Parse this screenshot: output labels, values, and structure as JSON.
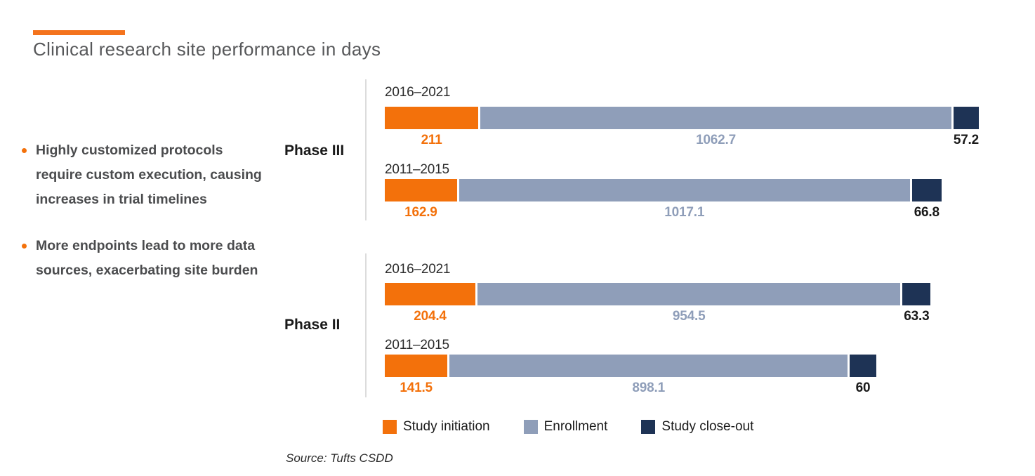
{
  "title": "Clinical research site performance in days",
  "accent_color": "#f4731d",
  "bullets": [
    "Highly customized protocols require custom execution, causing increases in trial timelines",
    "More endpoints lead to more data sources, exacerbating site burden"
  ],
  "chart_data": {
    "type": "bar",
    "orientation": "horizontal",
    "stacked": true,
    "unit": "days",
    "xmax": 1330.9,
    "legend_position": "bottom",
    "series_names": [
      "Study initiation",
      "Enrollment",
      "Study close-out"
    ],
    "series_colors": [
      "#f3710b",
      "#8f9eb9",
      "#1e3355"
    ],
    "value_label_colors": [
      "#f3710b",
      "#8f9eb9",
      "#1a1a1a"
    ],
    "groups": [
      {
        "label": "Phase III",
        "rows": [
          {
            "period": "2016–2021",
            "values": [
              211,
              1062.7,
              57.2
            ],
            "value_labels": [
              "211",
              "1062.7",
              "57.2"
            ]
          },
          {
            "period": "2011–2015",
            "values": [
              162.9,
              1017.1,
              66.8
            ],
            "value_labels": [
              "162.9",
              "1017.1",
              "66.8"
            ]
          }
        ]
      },
      {
        "label": "Phase II",
        "rows": [
          {
            "period": "2016–2021",
            "values": [
              204.4,
              954.5,
              63.3
            ],
            "value_labels": [
              "204.4",
              "954.5",
              "63.3"
            ]
          },
          {
            "period": "2011–2015",
            "values": [
              141.5,
              898.1,
              60
            ],
            "value_labels": [
              "141.5",
              "898.1",
              "60"
            ]
          }
        ]
      }
    ]
  },
  "source": "Source: Tufts CSDD"
}
